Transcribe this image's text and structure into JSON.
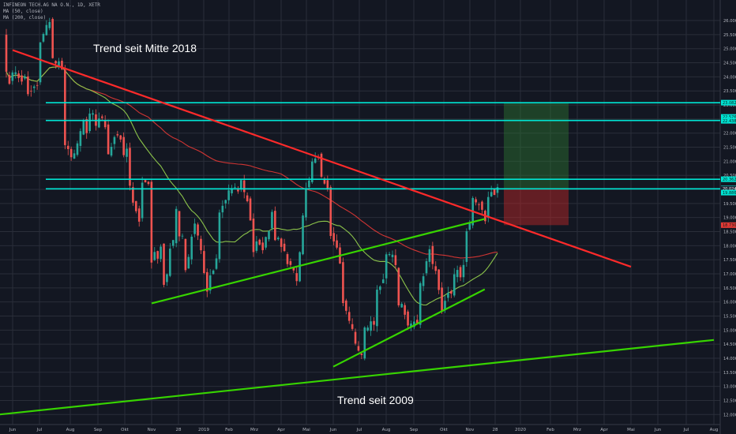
{
  "chart_data": {
    "type": "candlestick",
    "legend_lines": [
      "INFINEON TECH.AG NA O.N., 1D, XETR",
      "MA (50, close)",
      "MA (200, close)"
    ],
    "x_ticks": [
      "Jun",
      "Jul",
      "Aug",
      "Sep",
      "Okt",
      "Nov",
      "28",
      "2019",
      "Feb",
      "Mrz",
      "Apr",
      "Mai",
      "Jun",
      "Jul",
      "Aug",
      "Sep",
      "Okt",
      "Nov",
      "28",
      "2020",
      "Feb",
      "Mrz",
      "Apr",
      "Mai",
      "Jun",
      "Jul",
      "Aug"
    ],
    "y_ticks": [
      "26.000",
      "25.500",
      "25.000",
      "24.500",
      "24.000",
      "23.500",
      "23.000",
      "22.500",
      "22.000",
      "21.500",
      "21.000",
      "20.500",
      "20.000",
      "19.500",
      "19.000",
      "18.500",
      "18.000",
      "17.500",
      "17.000",
      "16.500",
      "16.000",
      "15.500",
      "15.000",
      "14.500",
      "14.000",
      "13.500",
      "13.000",
      "12.500",
      "12.000"
    ],
    "ylim": [
      11.7,
      26.15
    ],
    "price_labels": [
      {
        "text": "23.082",
        "value": 23.082,
        "bg": "#00e5d4"
      },
      {
        "text": "22.576",
        "value": 22.576,
        "bg": "#00e5d4"
      },
      {
        "text": "22.438",
        "value": 22.438,
        "bg": "#00e5d4"
      },
      {
        "text": "20.362",
        "value": 20.362,
        "bg": "#00e5d4"
      },
      {
        "text": "20.040",
        "value": 20.04,
        "bg": "#00e5d4"
      },
      {
        "text": "20.024",
        "value": 20.024,
        "bg": "#1c2030"
      },
      {
        "text": "19.886",
        "value": 19.886,
        "bg": "#00e5d4"
      },
      {
        "text": "18.730",
        "value": 18.73,
        "bg": "#e53935"
      }
    ],
    "horizontal_levels": [
      23.08,
      22.45,
      20.36,
      20.02
    ],
    "series": [
      {
        "name": "Trend seit Mitte 2018",
        "type": "trendline",
        "color": "#ff2a2a",
        "points": [
          [
            "Jun 2018",
            24.95
          ],
          [
            "Mai 2020",
            17.25
          ]
        ]
      },
      {
        "name": "Trend seit 2009",
        "type": "trendline",
        "color": "#37d400",
        "points": [
          [
            "Mai 2018",
            11.95
          ],
          [
            "Aug 2020",
            14.65
          ]
        ]
      },
      {
        "name": "",
        "type": "trendline",
        "color": "#37d400",
        "points": [
          [
            "Nov 2018",
            15.95
          ],
          [
            "Dez 2019",
            18.95
          ]
        ]
      },
      {
        "name": "",
        "type": "trendline",
        "color": "#37d400",
        "points": [
          [
            "Jun 2019",
            13.7
          ],
          [
            "Dez 2019",
            16.45
          ]
        ]
      }
    ],
    "trade_box": {
      "entry": 20.04,
      "target": 23.08,
      "stop": 18.73
    },
    "annotations": [
      "Trend seit Mitte 2018",
      "Trend seit 2009"
    ],
    "colors": {
      "background": "#131722",
      "grid": "#2a2e39",
      "up": "#26a69a",
      "down": "#ef5350",
      "ma50": "#8bc34a",
      "ma200": "#e53935"
    },
    "anchors": [
      [
        25.6,
        24.0
      ],
      [
        24.0,
        24.3
      ],
      [
        23.5,
        23.1
      ],
      [
        23.8,
        25.3
      ],
      [
        26.0,
        24.8
      ],
      [
        24.5,
        22.0
      ],
      [
        20.8,
        21.2
      ],
      [
        22.6,
        22.0
      ],
      [
        23.2,
        22.3
      ],
      [
        22.5,
        21.3
      ],
      [
        22.1,
        21.8
      ],
      [
        21.2,
        20.2
      ],
      [
        18.8,
        19.9
      ],
      [
        20.5,
        17.5
      ],
      [
        17.9,
        16.3
      ],
      [
        18.5,
        19.4
      ],
      [
        17.8,
        17.1
      ],
      [
        19.2,
        18.5
      ],
      [
        16.4,
        17.0
      ],
      [
        17.7,
        18.9
      ],
      [
        20.0,
        19.8
      ],
      [
        20.3,
        20.1
      ],
      [
        19.0,
        18.0
      ],
      [
        17.8,
        18.3
      ],
      [
        19.1,
        18.5
      ],
      [
        17.7,
        17.2
      ],
      [
        17.0,
        16.8
      ],
      [
        20.8,
        20.3
      ],
      [
        21.4,
        21.0
      ],
      [
        19.7,
        18.4
      ],
      [
        17.5,
        16.2
      ],
      [
        15.1,
        14.8
      ],
      [
        13.8,
        15.3
      ],
      [
        15.4,
        16.0
      ],
      [
        16.9,
        17.9
      ],
      [
        17.3,
        16.1
      ],
      [
        15.3,
        15.5
      ],
      [
        14.9,
        16.3
      ],
      [
        18.0,
        17.6
      ],
      [
        16.1,
        15.8
      ],
      [
        16.3,
        16.9
      ],
      [
        17.2,
        17.8
      ],
      [
        20.0,
        19.5
      ],
      [
        19.1,
        19.6
      ],
      [
        20.1,
        20.0
      ]
    ]
  }
}
